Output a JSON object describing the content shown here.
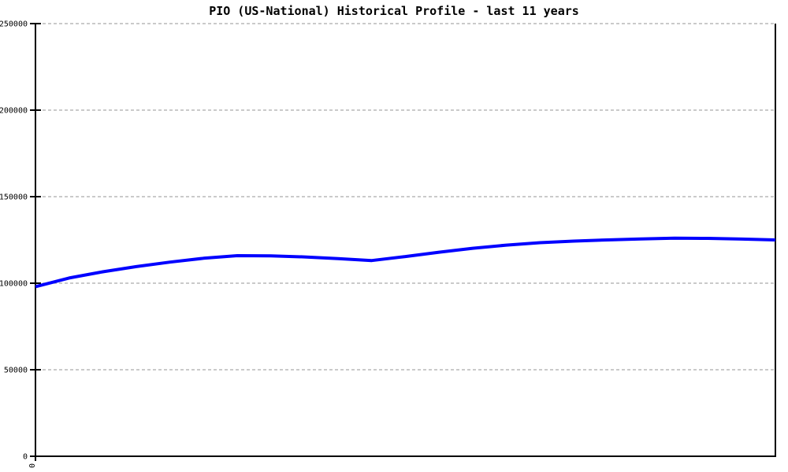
{
  "chart_data": {
    "type": "line",
    "title": "PIO (US-National) Historical Profile - last 11 years",
    "xlabel": "",
    "ylabel": "",
    "xlim": [
      0,
      11
    ],
    "ylim": [
      0,
      250000
    ],
    "yticks": [
      0,
      50000,
      100000,
      150000,
      200000,
      250000
    ],
    "xticks": [
      {
        "x": 0,
        "label": "0"
      }
    ],
    "grid": {
      "horizontal": true,
      "style": "dashed",
      "color": "#b8b8b8"
    },
    "legend": "none",
    "series": [
      {
        "color": "#0000ff",
        "x": [
          0,
          0.5,
          1,
          1.5,
          2,
          2.5,
          3,
          3.5,
          4,
          4.5,
          5,
          5.5,
          6,
          6.5,
          7,
          7.5,
          8,
          8.5,
          9,
          9.5,
          10,
          10.5,
          11
        ],
        "values": [
          98000,
          103000,
          106600,
          109600,
          112200,
          114400,
          115900,
          115800,
          115200,
          114200,
          113100,
          115400,
          117900,
          120200,
          122000,
          123400,
          124300,
          125000,
          125600,
          126000,
          125900,
          125500,
          125000
        ]
      }
    ]
  },
  "colors": {
    "line": "#0000ff",
    "grid": "#b8b8b8",
    "axis": "#000000",
    "background": "#ffffff",
    "text": "#000000"
  }
}
